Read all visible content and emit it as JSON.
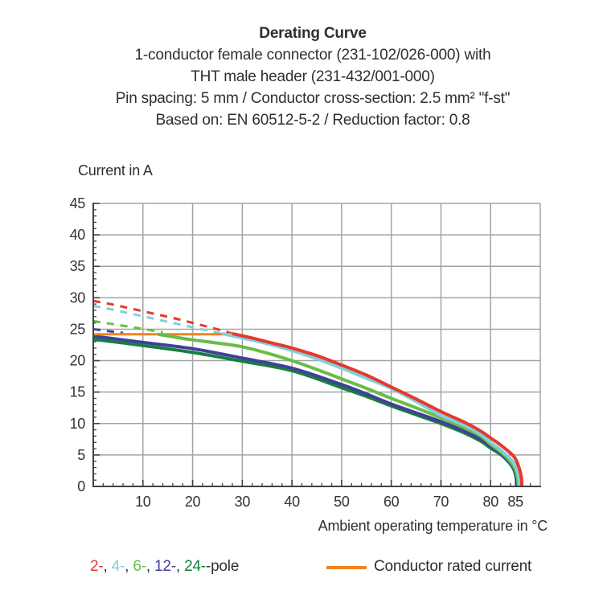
{
  "header": {
    "title": "Derating Curve",
    "lines": [
      "1-conductor female connector (231-102/026-000) with",
      "THT male header (231-432/001-000)",
      "Pin spacing: 5 mm / Conductor cross-section: 2.5 mm² \"f-st\"",
      "Based on: EN 60512-5-2 / Reduction factor: 0.8"
    ]
  },
  "chart_data": {
    "type": "line",
    "title": "Derating Curve",
    "ylabel": "Current in A",
    "xlabel": "Ambient operating temperature in °C",
    "xlim": [
      0,
      90
    ],
    "ylim": [
      0,
      45
    ],
    "x_tick_labels": [
      10,
      20,
      30,
      40,
      50,
      60,
      70,
      80,
      85
    ],
    "x_gridlines": [
      10,
      20,
      30,
      40,
      50,
      60,
      70,
      80,
      90
    ],
    "x_minor_step": 2,
    "y_tick_labels": [
      0,
      5,
      10,
      15,
      20,
      25,
      30,
      35,
      40,
      45
    ],
    "y_gridlines": [
      5,
      10,
      15,
      20,
      25,
      30,
      35,
      40,
      45
    ],
    "y_minor_step": 1,
    "grid_color": "#a2a4a4",
    "axis_color": "#3f4345",
    "series": [
      {
        "name": "2-pole-unlimited",
        "color": "#e6392e",
        "dashed": true,
        "width": 3,
        "points": [
          [
            0,
            29.5
          ],
          [
            4,
            28.9
          ],
          [
            8,
            28.2
          ],
          [
            12,
            27.5
          ],
          [
            16,
            26.8
          ],
          [
            20,
            26.0
          ],
          [
            24,
            25.2
          ],
          [
            28,
            24.3
          ]
        ]
      },
      {
        "name": "4-pole-unlimited",
        "color": "#82cfdb",
        "dashed": true,
        "width": 3,
        "points": [
          [
            0,
            28.7
          ],
          [
            4,
            28.1
          ],
          [
            8,
            27.4
          ],
          [
            12,
            26.7
          ],
          [
            16,
            26.0
          ],
          [
            20,
            25.3
          ],
          [
            23,
            24.8
          ],
          [
            26,
            24.3
          ]
        ]
      },
      {
        "name": "6-pole-unlimited",
        "color": "#67bd48",
        "dashed": true,
        "width": 3,
        "points": [
          [
            0,
            26.3
          ],
          [
            4,
            25.8
          ],
          [
            8,
            25.3
          ],
          [
            11,
            24.9
          ],
          [
            14,
            24.5
          ]
        ]
      },
      {
        "name": "12-pole-unlimited",
        "color": "#423f99",
        "dashed": true,
        "width": 3,
        "points": [
          [
            0,
            25.0
          ],
          [
            3,
            24.7
          ],
          [
            6,
            24.4
          ]
        ]
      },
      {
        "name": "24-pole",
        "color": "#157f3d",
        "dashed": false,
        "width": 4,
        "points": [
          [
            0,
            23.4
          ],
          [
            10,
            22.4
          ],
          [
            20,
            21.3
          ],
          [
            30,
            19.9
          ],
          [
            40,
            18.4
          ],
          [
            50,
            15.7
          ],
          [
            55,
            14.3
          ],
          [
            60,
            12.8
          ],
          [
            65,
            11.4
          ],
          [
            70,
            10.0
          ],
          [
            75,
            8.4
          ],
          [
            78,
            7.2
          ],
          [
            80,
            6.1
          ],
          [
            82,
            5.1
          ],
          [
            83.5,
            4.0
          ],
          [
            84.6,
            2.8
          ],
          [
            85.1,
            1.5
          ],
          [
            85.3,
            0
          ]
        ]
      },
      {
        "name": "12-pole",
        "color": "#423f99",
        "dashed": false,
        "width": 4,
        "points": [
          [
            0,
            23.9
          ],
          [
            10,
            22.9
          ],
          [
            20,
            21.9
          ],
          [
            30,
            20.4
          ],
          [
            40,
            18.8
          ],
          [
            50,
            16.2
          ],
          [
            55,
            14.7
          ],
          [
            60,
            13.1
          ],
          [
            65,
            11.7
          ],
          [
            70,
            10.3
          ],
          [
            75,
            8.7
          ],
          [
            78,
            7.5
          ],
          [
            80,
            6.4
          ],
          [
            82,
            5.3
          ],
          [
            83.5,
            4.2
          ],
          [
            84.7,
            3.0
          ],
          [
            85.2,
            1.5
          ],
          [
            85.4,
            0
          ]
        ]
      },
      {
        "name": "conductor-rated-current",
        "color": "#f0831f",
        "dashed": false,
        "width": 3,
        "points": [
          [
            0,
            24.2
          ],
          [
            28,
            24.2
          ]
        ]
      },
      {
        "name": "6-pole",
        "color": "#67bd48",
        "dashed": false,
        "width": 4,
        "points": [
          [
            13,
            24.2
          ],
          [
            16,
            23.8
          ],
          [
            20,
            23.3
          ],
          [
            25,
            22.8
          ],
          [
            30,
            22.2
          ],
          [
            35,
            21.2
          ],
          [
            40,
            20.0
          ],
          [
            45,
            18.6
          ],
          [
            50,
            17.1
          ],
          [
            55,
            15.6
          ],
          [
            60,
            14.0
          ],
          [
            65,
            12.5
          ],
          [
            70,
            10.9
          ],
          [
            75,
            9.2
          ],
          [
            78,
            8.0
          ],
          [
            80,
            6.7
          ],
          [
            82,
            5.5
          ],
          [
            83.5,
            4.4
          ],
          [
            84.8,
            3.0
          ],
          [
            85.4,
            1.4
          ],
          [
            85.6,
            0
          ]
        ]
      },
      {
        "name": "4-pole",
        "color": "#82cfdb",
        "dashed": false,
        "width": 4,
        "points": [
          [
            26,
            24.3
          ],
          [
            30,
            23.6
          ],
          [
            35,
            22.7
          ],
          [
            40,
            21.6
          ],
          [
            45,
            20.3
          ],
          [
            50,
            18.8
          ],
          [
            55,
            17.2
          ],
          [
            60,
            15.6
          ],
          [
            65,
            13.5
          ],
          [
            70,
            11.3
          ],
          [
            75,
            9.6
          ],
          [
            78,
            8.3
          ],
          [
            80,
            7.0
          ],
          [
            82,
            5.8
          ],
          [
            84,
            4.4
          ],
          [
            85,
            3.2
          ],
          [
            85.6,
            1.6
          ],
          [
            85.8,
            0
          ]
        ]
      },
      {
        "name": "2-pole",
        "color": "#e6392e",
        "dashed": false,
        "width": 4,
        "points": [
          [
            28,
            24.3
          ],
          [
            32,
            23.6
          ],
          [
            36,
            22.8
          ],
          [
            40,
            22.0
          ],
          [
            45,
            20.8
          ],
          [
            50,
            19.3
          ],
          [
            55,
            17.7
          ],
          [
            60,
            15.8
          ],
          [
            65,
            13.9
          ],
          [
            70,
            11.9
          ],
          [
            75,
            10.1
          ],
          [
            78,
            8.8
          ],
          [
            80,
            7.7
          ],
          [
            82,
            6.6
          ],
          [
            84,
            5.3
          ],
          [
            85,
            4.4
          ],
          [
            85.8,
            2.8
          ],
          [
            86.2,
            1.4
          ],
          [
            86.3,
            0
          ]
        ]
      }
    ]
  },
  "legend": {
    "poles": [
      {
        "label": "2-",
        "color": "#e6392e"
      },
      {
        "label": "4-",
        "color": "#82cfdb"
      },
      {
        "label": "6-",
        "color": "#67bd48"
      },
      {
        "label": "12-",
        "color": "#423f99"
      },
      {
        "label": "24-",
        "color": "#157f3d"
      }
    ],
    "separator": ", ",
    "suffix": "-pole",
    "rated_label": "Conductor rated current",
    "rated_color": "#f0831f"
  }
}
